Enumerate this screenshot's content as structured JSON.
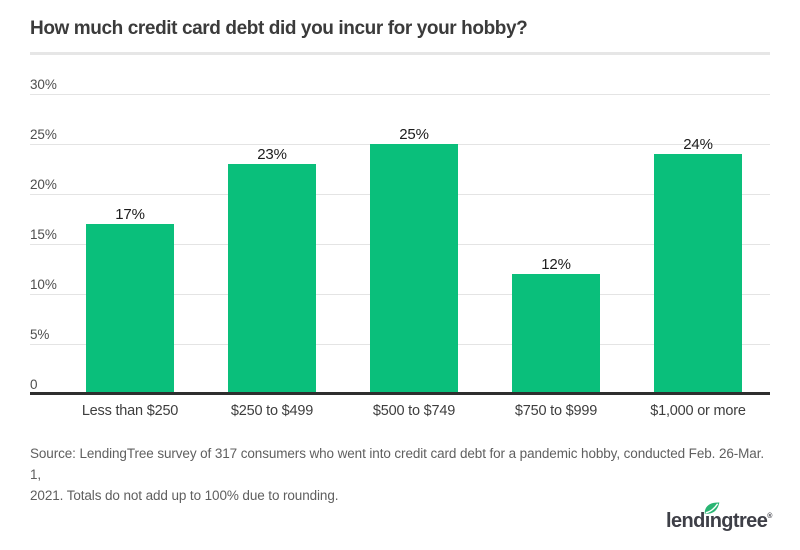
{
  "title": "How much credit card debt did you incur for your hobby?",
  "chart_data": {
    "type": "bar",
    "title": "How much credit card debt did you incur for your hobby?",
    "categories": [
      "Less than $250",
      "$250 to $499",
      "$500 to $749",
      "$750 to $999",
      "$1,000 or more"
    ],
    "values": [
      17,
      23,
      25,
      12,
      24
    ],
    "value_labels": [
      "17%",
      "23%",
      "25%",
      "12%",
      "24%"
    ],
    "xlabel": "",
    "ylabel": "",
    "ylim": [
      0,
      30
    ],
    "yticks": [
      {
        "value": 30,
        "label": "30%"
      },
      {
        "value": 25,
        "label": "25%"
      },
      {
        "value": 20,
        "label": "20%"
      },
      {
        "value": 15,
        "label": "15%"
      },
      {
        "value": 10,
        "label": "10%"
      },
      {
        "value": 5,
        "label": "5%"
      },
      {
        "value": 0,
        "label": "0"
      }
    ],
    "grid": "horizontal",
    "legend": "none",
    "bar_color": "#0abf7b",
    "axis_color": "#2e2e2e",
    "grid_color": "#e4e4e4"
  },
  "source": {
    "lines": [
      "Source: LendingTree survey of 317 consumers who went into credit card debt for a pandemic hobby, conducted Feb. 26-Mar. 1,",
      "2021. Totals do not add up to 100% due to rounding."
    ]
  },
  "logo": {
    "brand": "lendingtree",
    "display_pre": "lend",
    "display_i": "ı",
    "display_post": "ngtree",
    "reg": "®",
    "leaf_color": "#29b573",
    "text_color": "#3e3f47"
  }
}
